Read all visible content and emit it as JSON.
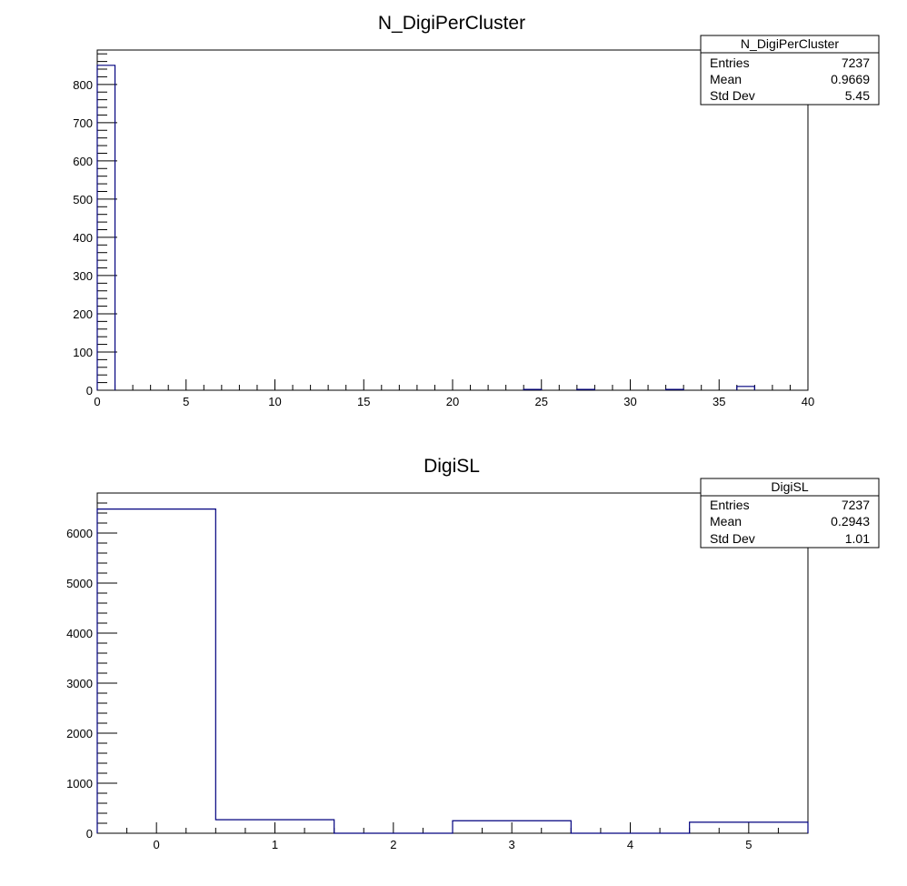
{
  "chart_data": [
    {
      "type": "bar",
      "title": "N_DigiPerCluster",
      "xlabel": "",
      "ylabel": "",
      "xlim": [
        0,
        40
      ],
      "ylim": [
        0,
        890
      ],
      "bin_width": 1,
      "x_ticks": [
        0,
        5,
        10,
        15,
        20,
        25,
        30,
        35,
        40
      ],
      "y_ticks": [
        0,
        100,
        200,
        300,
        400,
        500,
        600,
        700,
        800
      ],
      "bins": [
        {
          "x": 0,
          "value": 850
        },
        {
          "x": 24,
          "value": 2
        },
        {
          "x": 27,
          "value": 2
        },
        {
          "x": 32,
          "value": 2
        },
        {
          "x": 36,
          "value": 10
        }
      ],
      "stats": {
        "name": "N_DigiPerCluster",
        "rows": [
          {
            "label": "Entries",
            "value": "7237"
          },
          {
            "label": "Mean",
            "value": "0.9669"
          },
          {
            "label": "Std Dev",
            "value": "5.45"
          }
        ]
      },
      "line_color": "#00007f"
    },
    {
      "type": "bar",
      "title": "DigiSL",
      "xlabel": "",
      "ylabel": "",
      "xlim": [
        -0.5,
        5.5
      ],
      "ylim": [
        0,
        6800
      ],
      "bin_width": 1,
      "x_ticks": [
        0,
        1,
        2,
        3,
        4,
        5
      ],
      "y_ticks": [
        0,
        1000,
        2000,
        3000,
        4000,
        5000,
        6000
      ],
      "bins": [
        {
          "x": 0,
          "value": 6480
        },
        {
          "x": 1,
          "value": 270
        },
        {
          "x": 2,
          "value": 0
        },
        {
          "x": 3,
          "value": 250
        },
        {
          "x": 4,
          "value": 0
        },
        {
          "x": 5,
          "value": 220
        }
      ],
      "stats": {
        "name": "DigiSL",
        "rows": [
          {
            "label": "Entries",
            "value": "7237"
          },
          {
            "label": "Mean",
            "value": "0.2943"
          },
          {
            "label": "Std Dev",
            "value": "1.01"
          }
        ]
      },
      "line_color": "#00007f"
    }
  ]
}
